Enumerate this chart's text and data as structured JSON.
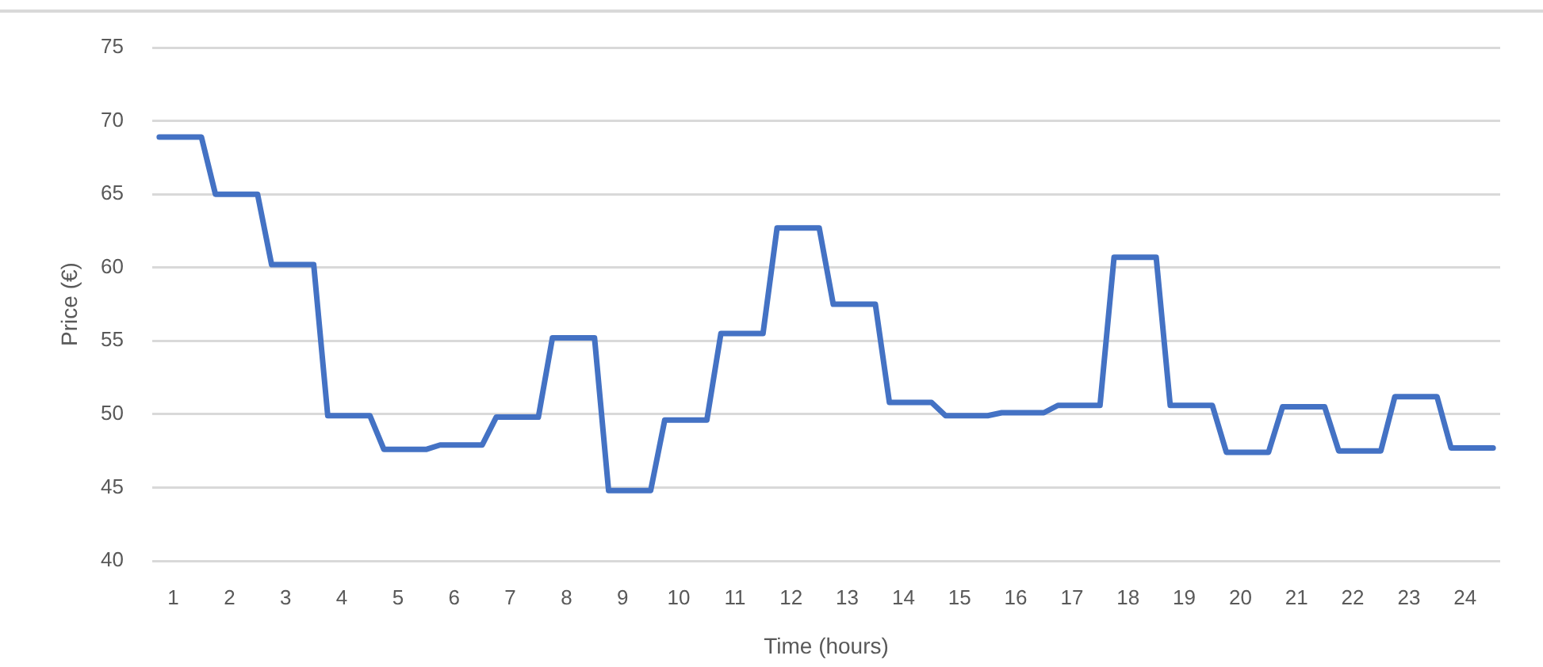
{
  "chart_data": {
    "type": "line",
    "xlabel": "Time (hours)",
    "ylabel": "Price (€)",
    "x": [
      0.75,
      1,
      1.25,
      1.5,
      1.75,
      2,
      2.25,
      2.5,
      2.75,
      3,
      3.25,
      3.5,
      3.75,
      4,
      4.25,
      4.5,
      4.75,
      5,
      5.25,
      5.5,
      5.75,
      6,
      6.25,
      6.5,
      6.75,
      7,
      7.25,
      7.5,
      7.75,
      8,
      8.25,
      8.5,
      8.75,
      9,
      9.25,
      9.5,
      9.75,
      10,
      10.25,
      10.5,
      10.75,
      11,
      11.25,
      11.5,
      11.75,
      12,
      12.25,
      12.5,
      12.75,
      13,
      13.25,
      13.5,
      13.75,
      14,
      14.25,
      14.5,
      14.75,
      15,
      15.25,
      15.5,
      15.75,
      16,
      16.25,
      16.5,
      16.75,
      17,
      17.25,
      17.5,
      17.75,
      18,
      18.25,
      18.5,
      18.75,
      19,
      19.25,
      19.5,
      19.75,
      20,
      20.25,
      20.5,
      20.75,
      21,
      21.25,
      21.5,
      21.75,
      22,
      22.25,
      22.5,
      22.75,
      23,
      23.25,
      23.5,
      23.75,
      24,
      24.25,
      24.5
    ],
    "values": [
      68.9,
      68.9,
      68.9,
      68.9,
      65.0,
      65.0,
      65.0,
      65.0,
      60.2,
      60.2,
      60.2,
      60.2,
      49.9,
      49.9,
      49.9,
      49.9,
      47.6,
      47.6,
      47.6,
      47.6,
      47.9,
      47.9,
      47.9,
      47.9,
      49.8,
      49.8,
      49.8,
      49.8,
      55.2,
      55.2,
      55.2,
      55.2,
      44.8,
      44.8,
      44.8,
      44.8,
      49.6,
      49.6,
      49.6,
      49.6,
      55.5,
      55.5,
      55.5,
      55.5,
      62.7,
      62.7,
      62.7,
      62.7,
      57.5,
      57.5,
      57.5,
      57.5,
      50.8,
      50.8,
      50.8,
      50.8,
      49.9,
      49.9,
      49.9,
      49.9,
      50.1,
      50.1,
      50.1,
      50.1,
      50.6,
      50.6,
      50.6,
      50.6,
      60.7,
      60.7,
      60.7,
      60.7,
      50.6,
      50.6,
      50.6,
      50.6,
      47.4,
      47.4,
      47.4,
      47.4,
      50.5,
      50.5,
      50.5,
      50.5,
      47.5,
      47.5,
      47.5,
      47.5,
      51.2,
      51.2,
      51.2,
      51.2,
      47.7,
      47.7,
      47.7,
      47.7
    ],
    "color": "#4472c4",
    "xlim": [
      0.625,
      24.625
    ],
    "xticks": [
      1,
      2,
      3,
      4,
      5,
      6,
      7,
      8,
      9,
      10,
      11,
      12,
      13,
      14,
      15,
      16,
      17,
      18,
      19,
      20,
      21,
      22,
      23,
      24
    ],
    "ylim": [
      40,
      75
    ],
    "yticks": [
      40,
      45,
      50,
      55,
      60,
      65,
      70,
      75
    ],
    "grid": "y",
    "legend": false,
    "marker": "none",
    "line_style": "solid"
  }
}
